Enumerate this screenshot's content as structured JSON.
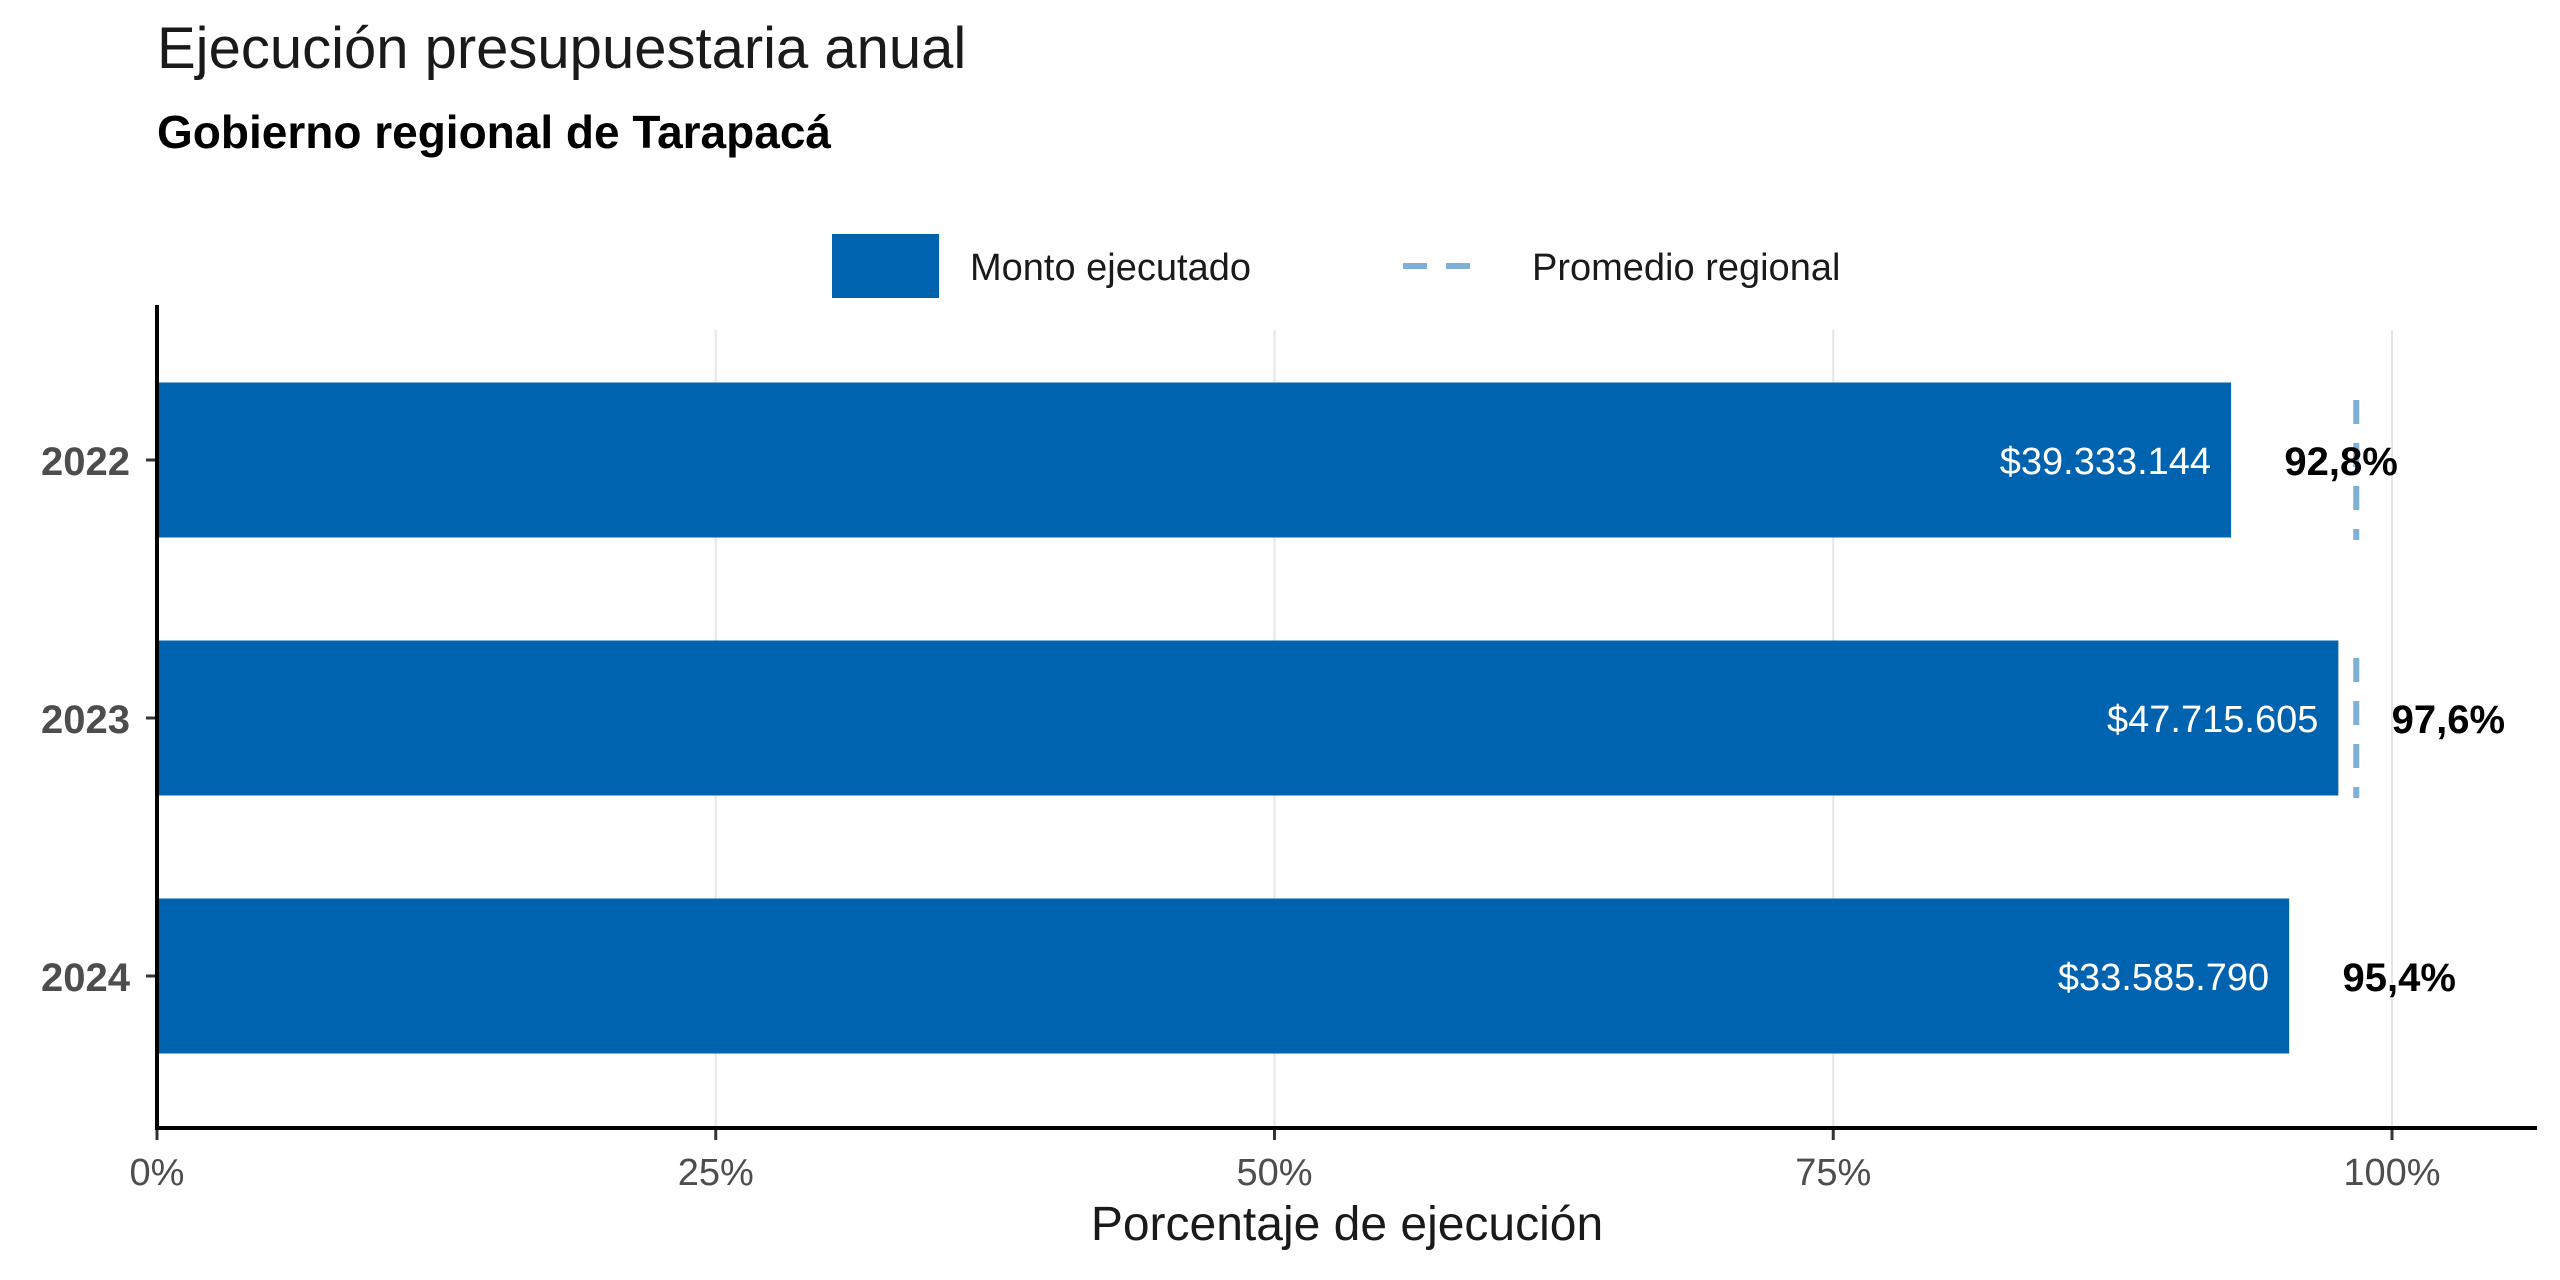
{
  "chart_data": {
    "type": "bar",
    "orientation": "horizontal",
    "title": "Ejecución presupuestaria anual",
    "subtitle": "Gobierno regional de Tarapacá",
    "xlabel": "Porcentaje de ejecución",
    "ylabel": "",
    "xlim": [
      0,
      106
    ],
    "x_ticks": [
      0,
      25,
      50,
      75,
      100
    ],
    "x_tick_labels": [
      "0%",
      "25%",
      "50%",
      "75%",
      "100%"
    ],
    "categories": [
      "2022",
      "2023",
      "2024"
    ],
    "values": [
      92.8,
      97.6,
      95.4
    ],
    "value_labels": [
      "92,8%",
      "97,6%",
      "95,4%"
    ],
    "amount_labels": [
      "$39.333.144",
      "$47.715.605",
      "$33.585.790"
    ],
    "regional_average": [
      98.4,
      98.4,
      null
    ],
    "legend": {
      "position": "top",
      "items": [
        {
          "label": "Monto ejecutado",
          "kind": "bar"
        },
        {
          "label": "Promedio regional",
          "kind": "dashed-line"
        }
      ]
    },
    "grid": true,
    "colors": {
      "bar": "#0063AF",
      "average_line": "#7FB0D6",
      "grid": "#E6E6E6",
      "axis": "#000000",
      "tick_text": "#4D4D4D",
      "amount_text": "#FFFFFF",
      "value_text": "#000000"
    }
  }
}
